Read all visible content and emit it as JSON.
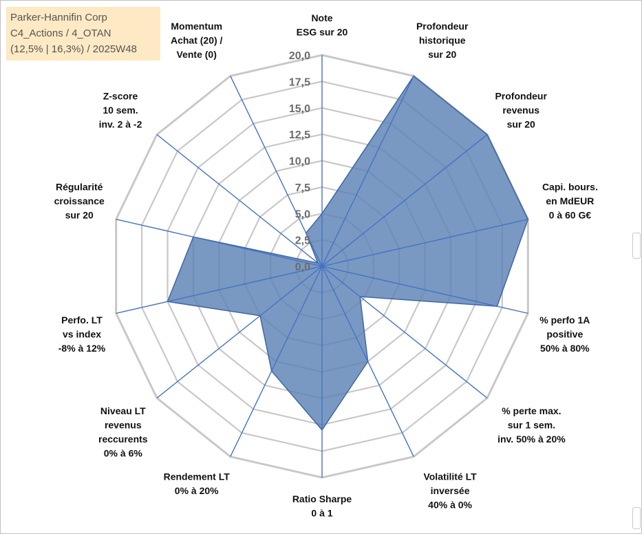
{
  "header": {
    "line1": "Parker-Hannifin Corp",
    "line2": "C4_Actions / 4_OTAN",
    "line3": "(12,5% | 16,3%) / 2025W48"
  },
  "chart_data": {
    "type": "radar",
    "title": "",
    "scale_min": 0,
    "scale_max": 20,
    "scale_step": 2.5,
    "tick_labels": [
      "0,0",
      "2,5",
      "5,0",
      "7,5",
      "10,0",
      "12,5",
      "15,0",
      "17,5",
      "20,0"
    ],
    "axes": [
      [
        "Note",
        "ESG sur 20"
      ],
      [
        "Profondeur",
        "historique",
        "sur 20"
      ],
      [
        "Profondeur",
        "revenus",
        "sur 20"
      ],
      [
        "Capi. bours.",
        "en MdEUR",
        "0 à 60 G€"
      ],
      [
        "% perfo 1A",
        "positive",
        "50% à 80%"
      ],
      [
        "% perte max.",
        "sur 1 sem.",
        "inv. 50% à 20%"
      ],
      [
        "Volatilité LT",
        "inversée",
        "40% à 0%"
      ],
      [
        "Ratio Sharpe",
        "0 à 1"
      ],
      [
        "Rendement LT",
        "0% à 20%"
      ],
      [
        "Niveau LT",
        "revenus",
        "reccurents",
        "0% à 6%"
      ],
      [
        "Perfo. LT",
        "vs index",
        "-8% à 12%"
      ],
      [
        "Régularité",
        "croissance",
        "sur 20"
      ],
      [
        "Z-score",
        "10 sem.",
        "inv. 2 à -2"
      ],
      [
        "Momentum",
        "Achat (20) /",
        "Vente (0)"
      ]
    ],
    "series": [
      {
        "name": "Parker-Hannifin Corp",
        "values": [
          5.0,
          20.0,
          20.0,
          20.0,
          17.0,
          4.6,
          10.0,
          15.5,
          11.0,
          7.5,
          15.0,
          12.5,
          0.5,
          3.5
        ]
      }
    ],
    "colors": {
      "fill": "#5b82b4",
      "stroke": "#3e66a6",
      "grid": "#c8c8c8",
      "spoke": "#4472c4"
    }
  }
}
